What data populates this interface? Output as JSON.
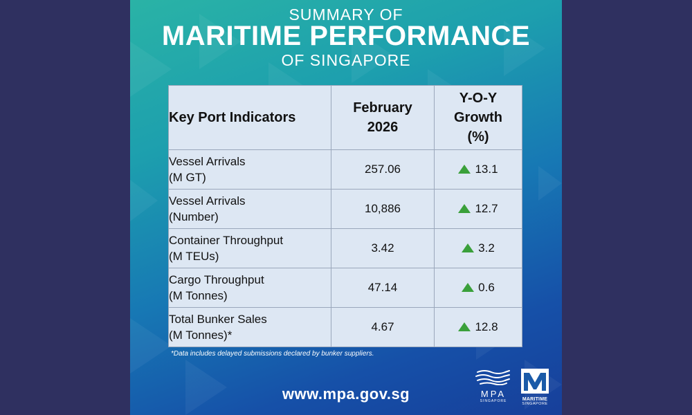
{
  "header": {
    "line1": "SUMMARY OF",
    "line2": "MARITIME PERFORMANCE",
    "line3": "OF SINGAPORE"
  },
  "table": {
    "col1": "Key Port Indicators",
    "col2_line1": "February",
    "col2_line2": "2026",
    "col3_line1": "Y-O-Y",
    "col3_line2": "Growth",
    "col3_line3": "(%)",
    "rows": [
      {
        "label1": "Vessel Arrivals",
        "label2": "(M GT)",
        "value": "257.06",
        "growth": "13.1"
      },
      {
        "label1": "Vessel Arrivals",
        "label2": "(Number)",
        "value": "10,886",
        "growth": "12.7"
      },
      {
        "label1": "Container Throughput",
        "label2": "(M TEUs)",
        "value": "3.42",
        "growth": "3.2"
      },
      {
        "label1": "Cargo Throughput",
        "label2": "(M Tonnes)",
        "value": "47.14",
        "growth": "0.6"
      },
      {
        "label1": "Total Bunker Sales",
        "label2": "(M Tonnes)*",
        "value": "4.67",
        "growth": "12.8"
      }
    ]
  },
  "footnote": "*Data includes delayed submissions declared by bunker suppliers.",
  "website": "www.mpa.gov.sg",
  "logos": {
    "mpa_name": "MPA",
    "mpa_sub": "SINGAPORE",
    "ms_name": "MARITIME",
    "ms_sub": "SINGAPORE"
  },
  "colors": {
    "page_background": "#2f3060",
    "table_background": "#dde7f3",
    "up_arrow": "#3aa03a"
  },
  "icons": {
    "growth": "up-triangle-icon"
  }
}
